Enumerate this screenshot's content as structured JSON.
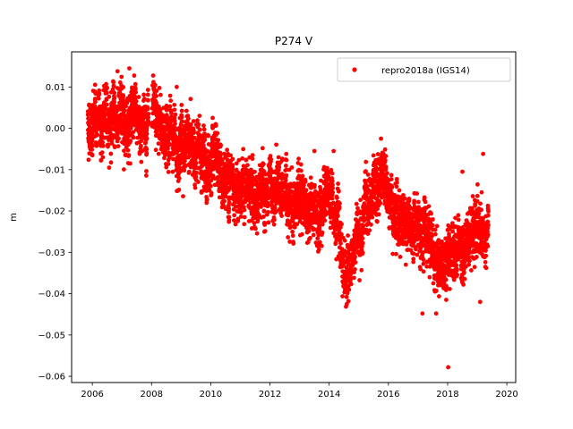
{
  "chart_data": {
    "type": "scatter",
    "title": "P274 V",
    "xlabel": "",
    "ylabel": "m",
    "xlim": [
      2005.3,
      2020.3
    ],
    "ylim": [
      -0.0615,
      0.0185
    ],
    "xticks": [
      2006,
      2008,
      2010,
      2012,
      2014,
      2016,
      2018,
      2020
    ],
    "xtick_labels": [
      "2006",
      "2008",
      "2010",
      "2012",
      "2014",
      "2016",
      "2018",
      "2020"
    ],
    "yticks": [
      0.01,
      0.0,
      -0.01,
      -0.02,
      -0.03,
      -0.04,
      -0.05,
      -0.06
    ],
    "ytick_labels": [
      "0.01",
      "0.00",
      "−0.01",
      "−0.02",
      "−0.03",
      "−0.04",
      "−0.05",
      "−0.06"
    ],
    "grid": false,
    "legend": {
      "position": "top-right"
    },
    "series": [
      {
        "name": "repro2018a (IGS14)",
        "color": "#ff0000",
        "marker": "circle",
        "trend_points": [
          [
            2005.85,
            0.001
          ],
          [
            2006.5,
            0.002
          ],
          [
            2007.0,
            0.003
          ],
          [
            2007.5,
            0.002
          ],
          [
            2008.0,
            0.001
          ],
          [
            2008.5,
            -0.001
          ],
          [
            2009.0,
            -0.003
          ],
          [
            2009.5,
            -0.006
          ],
          [
            2010.0,
            -0.01
          ],
          [
            2010.5,
            -0.012
          ],
          [
            2011.0,
            -0.013
          ],
          [
            2011.5,
            -0.017
          ],
          [
            2012.0,
            -0.017
          ],
          [
            2012.5,
            -0.015
          ],
          [
            2013.0,
            -0.019
          ],
          [
            2013.5,
            -0.02
          ],
          [
            2014.0,
            -0.016
          ],
          [
            2014.3,
            -0.025
          ],
          [
            2014.6,
            -0.037
          ],
          [
            2014.85,
            -0.03
          ],
          [
            2015.2,
            -0.019
          ],
          [
            2015.5,
            -0.018
          ],
          [
            2015.8,
            -0.01
          ],
          [
            2016.1,
            -0.018
          ],
          [
            2016.5,
            -0.022
          ],
          [
            2017.0,
            -0.026
          ],
          [
            2017.4,
            -0.03
          ],
          [
            2017.8,
            -0.032
          ],
          [
            2018.2,
            -0.029
          ],
          [
            2018.6,
            -0.028
          ],
          [
            2019.0,
            -0.025
          ],
          [
            2019.38,
            -0.026
          ]
        ],
        "scatter_sd": 0.0035,
        "outliers": [
          [
            2018.02,
            -0.0578
          ],
          [
            2017.15,
            -0.0448
          ],
          [
            2014.65,
            -0.0418
          ],
          [
            2006.85,
            0.0138
          ],
          [
            2007.25,
            0.0145
          ],
          [
            2008.85,
            0.01
          ],
          [
            2015.75,
            -0.0025
          ],
          [
            2018.5,
            -0.0105
          ],
          [
            2019.2,
            -0.0062
          ],
          [
            2019.1,
            -0.042
          ],
          [
            2014.15,
            -0.0055
          ],
          [
            2013.5,
            -0.0055
          ]
        ]
      }
    ]
  }
}
